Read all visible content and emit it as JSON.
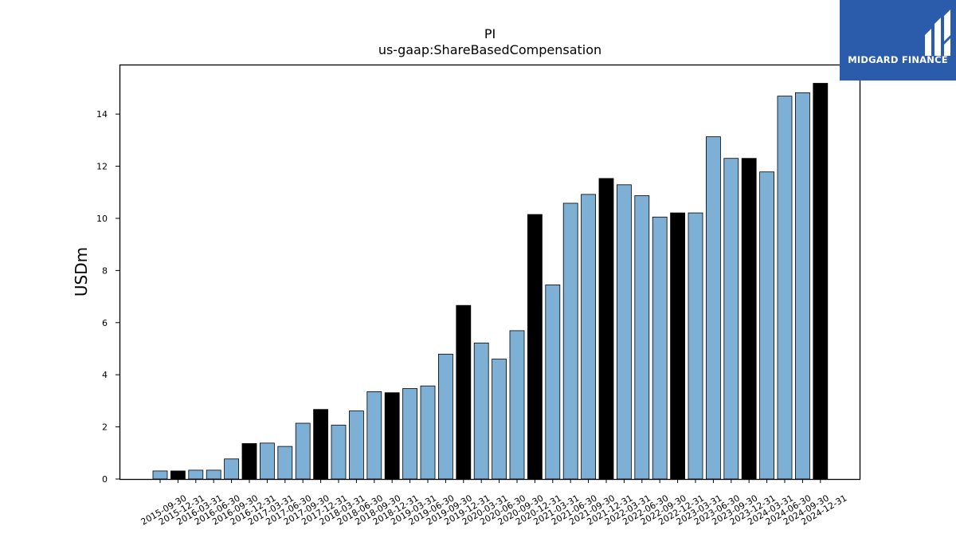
{
  "chart_data": {
    "type": "bar",
    "title": "PI",
    "subtitle": "us-gaap:ShareBasedCompensation",
    "ylabel": "USDm",
    "xlabel": "",
    "ylim": [
      0,
      15.9
    ],
    "yticks": [
      0,
      2,
      4,
      6,
      8,
      10,
      12,
      14
    ],
    "grid": false,
    "colors": {
      "regular": "#7eb0d5",
      "year_end": "#000000",
      "edge": "#000000"
    },
    "categories": [
      "2015-09-30",
      "2015-12-31",
      "2016-03-31",
      "2016-06-30",
      "2016-09-30",
      "2016-12-31",
      "2017-03-31",
      "2017-06-30",
      "2017-09-30",
      "2017-12-31",
      "2018-03-31",
      "2018-06-30",
      "2018-09-30",
      "2018-12-31",
      "2019-03-31",
      "2019-06-30",
      "2019-09-30",
      "2019-12-31",
      "2020-03-31",
      "2020-06-30",
      "2020-09-30",
      "2020-12-31",
      "2021-03-31",
      "2021-06-30",
      "2021-09-30",
      "2021-12-31",
      "2022-03-31",
      "2022-06-30",
      "2022-09-30",
      "2022-12-31",
      "2023-03-31",
      "2023-06-30",
      "2023-09-30",
      "2023-12-31",
      "2024-03-31",
      "2024-06-30",
      "2024-09-30",
      "2024-12-31"
    ],
    "values": [
      0.31,
      0.31,
      0.34,
      0.34,
      0.77,
      1.36,
      1.38,
      1.25,
      2.14,
      2.67,
      2.07,
      2.61,
      3.35,
      3.31,
      3.47,
      3.57,
      4.79,
      6.66,
      5.22,
      4.6,
      5.69,
      10.15,
      7.45,
      10.58,
      10.92,
      11.53,
      11.29,
      10.87,
      10.05,
      10.21,
      10.21,
      13.13,
      12.3,
      12.3,
      11.78,
      14.69,
      14.82,
      15.18
    ],
    "year_end": [
      false,
      true,
      false,
      false,
      false,
      true,
      false,
      false,
      false,
      true,
      false,
      false,
      false,
      true,
      false,
      false,
      false,
      true,
      false,
      false,
      false,
      true,
      false,
      false,
      false,
      true,
      false,
      false,
      false,
      true,
      false,
      false,
      false,
      true,
      false,
      false,
      false,
      true
    ]
  },
  "logo": {
    "text": "MIDGARD FINANCE",
    "icon": "midgard-logo-icon",
    "color": "#2b5bab"
  }
}
